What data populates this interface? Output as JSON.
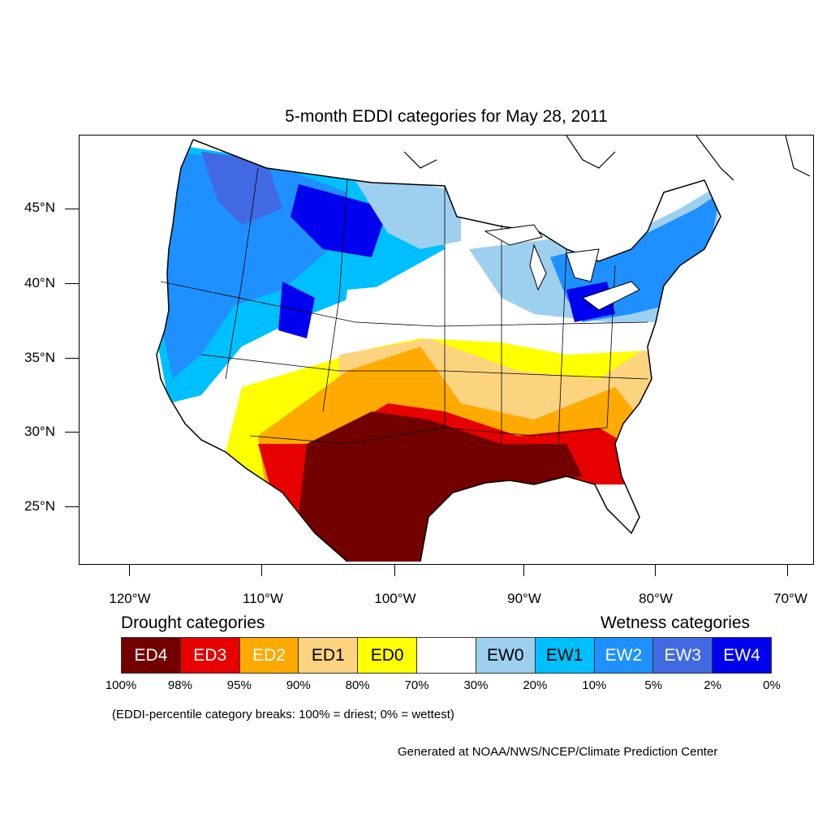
{
  "title": "5-month EDDI categories for May 28, 2011",
  "map": {
    "latitude_labels": [
      "45°N",
      "40°N",
      "35°N",
      "30°N",
      "25°N"
    ],
    "longitude_labels": [
      "120°W",
      "110°W",
      "100°W",
      "90°W",
      "80°W",
      "70°W"
    ]
  },
  "legend": {
    "drought_heading": "Drought categories",
    "wetness_heading": "Wetness categories",
    "categories": [
      {
        "label": "ED4",
        "color": "#730000",
        "text_color": "#ffffff"
      },
      {
        "label": "ED3",
        "color": "#e60000",
        "text_color": "#ffffff"
      },
      {
        "label": "ED2",
        "color": "#ffaa00",
        "text_color": "#ffffff"
      },
      {
        "label": "ED1",
        "color": "#fcd37f",
        "text_color": "#000000"
      },
      {
        "label": "ED0",
        "color": "#ffff00",
        "text_color": "#000000"
      },
      {
        "label": "",
        "color": "#ffffff",
        "text_color": "#000000"
      },
      {
        "label": "EW0",
        "color": "#9dcfef",
        "text_color": "#000000"
      },
      {
        "label": "EW1",
        "color": "#00bfff",
        "text_color": "#000000"
      },
      {
        "label": "EW2",
        "color": "#1e90ff",
        "text_color": "#ffffff"
      },
      {
        "label": "EW3",
        "color": "#4169e1",
        "text_color": "#ffffff"
      },
      {
        "label": "EW4",
        "color": "#0000ee",
        "text_color": "#ffffff"
      }
    ],
    "breaks": [
      "100%",
      "98%",
      "95%",
      "90%",
      "80%",
      "70%",
      "30%",
      "20%",
      "10%",
      "5%",
      "2%",
      "0%"
    ]
  },
  "note": "(EDDI-percentile category breaks: 100% = driest; 0% = wettest)",
  "credit": "Generated at NOAA/NWS/NCEP/Climate Prediction Center"
}
